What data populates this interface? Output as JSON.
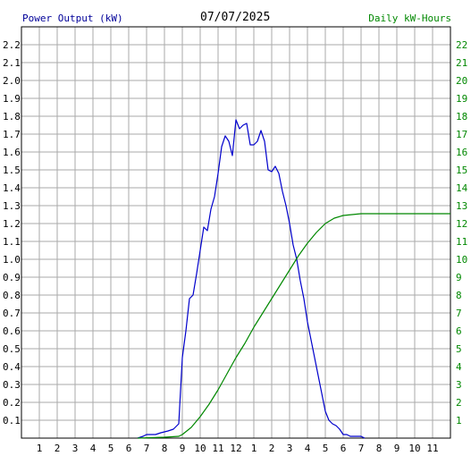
{
  "chart_data": {
    "type": "line",
    "title": "07/07/2025",
    "left_axis_label": "Power Output (kW)",
    "right_axis_label": "Daily kW-Hours",
    "x_tick_labels": [
      "1",
      "2",
      "3",
      "4",
      "5",
      "6",
      "7",
      "8",
      "9",
      "10",
      "11",
      "12",
      "1",
      "2",
      "3",
      "4",
      "5",
      "6",
      "7",
      "8",
      "9",
      "10",
      "11"
    ],
    "x_range_hours": [
      0,
      24
    ],
    "y_left_range": [
      0,
      2.3
    ],
    "y_left_ticks": [
      "0.1",
      "0.2",
      "0.3",
      "0.4",
      "0.5",
      "0.6",
      "0.7",
      "0.8",
      "0.9",
      "1.0",
      "1.1",
      "1.2",
      "1.3",
      "1.4",
      "1.5",
      "1.6",
      "1.7",
      "1.8",
      "1.9",
      "2.0",
      "2.1",
      "2.2"
    ],
    "y_right_range": [
      0,
      23
    ],
    "y_right_ticks": [
      "1",
      "2",
      "3",
      "4",
      "5",
      "6",
      "7",
      "8",
      "9",
      "10",
      "11",
      "12",
      "13",
      "14",
      "15",
      "16",
      "17",
      "18",
      "19",
      "20",
      "21",
      "22"
    ],
    "grid": true,
    "colors": {
      "power": "#0000cc",
      "energy": "#008800",
      "grid": "#aaaaaa",
      "axis": "#000000",
      "left_text": "#000099",
      "right_text": "#008800"
    },
    "series": [
      {
        "axis": "left",
        "color": "#0000cc",
        "points": [
          [
            6.5,
            0
          ],
          [
            6.8,
            0.01
          ],
          [
            7.0,
            0.02
          ],
          [
            7.5,
            0.02
          ],
          [
            7.8,
            0.03
          ],
          [
            8.2,
            0.04
          ],
          [
            8.5,
            0.05
          ],
          [
            8.8,
            0.08
          ],
          [
            9.0,
            0.45
          ],
          [
            9.2,
            0.6
          ],
          [
            9.4,
            0.78
          ],
          [
            9.6,
            0.8
          ],
          [
            9.8,
            0.92
          ],
          [
            10.0,
            1.05
          ],
          [
            10.2,
            1.18
          ],
          [
            10.4,
            1.16
          ],
          [
            10.6,
            1.28
          ],
          [
            10.8,
            1.35
          ],
          [
            11.0,
            1.48
          ],
          [
            11.2,
            1.63
          ],
          [
            11.4,
            1.69
          ],
          [
            11.6,
            1.66
          ],
          [
            11.8,
            1.58
          ],
          [
            12.0,
            1.78
          ],
          [
            12.2,
            1.73
          ],
          [
            12.4,
            1.75
          ],
          [
            12.6,
            1.76
          ],
          [
            12.8,
            1.64
          ],
          [
            13.0,
            1.64
          ],
          [
            13.2,
            1.66
          ],
          [
            13.4,
            1.72
          ],
          [
            13.6,
            1.66
          ],
          [
            13.8,
            1.5
          ],
          [
            14.0,
            1.49
          ],
          [
            14.2,
            1.52
          ],
          [
            14.4,
            1.48
          ],
          [
            14.6,
            1.38
          ],
          [
            14.8,
            1.3
          ],
          [
            15.0,
            1.2
          ],
          [
            15.2,
            1.08
          ],
          [
            15.4,
            1.0
          ],
          [
            15.6,
            0.88
          ],
          [
            15.8,
            0.78
          ],
          [
            16.0,
            0.65
          ],
          [
            16.2,
            0.55
          ],
          [
            16.4,
            0.45
          ],
          [
            16.6,
            0.35
          ],
          [
            16.8,
            0.25
          ],
          [
            17.0,
            0.15
          ],
          [
            17.2,
            0.1
          ],
          [
            17.4,
            0.08
          ],
          [
            17.6,
            0.07
          ],
          [
            17.8,
            0.05
          ],
          [
            18.0,
            0.02
          ],
          [
            18.2,
            0.02
          ],
          [
            18.4,
            0.01
          ],
          [
            19.0,
            0.01
          ],
          [
            19.2,
            0
          ]
        ]
      },
      {
        "axis": "right",
        "color": "#008800",
        "points": [
          [
            6.5,
            0
          ],
          [
            8.0,
            0.05
          ],
          [
            8.8,
            0.1
          ],
          [
            9.0,
            0.2
          ],
          [
            9.5,
            0.6
          ],
          [
            10.0,
            1.2
          ],
          [
            10.5,
            1.9
          ],
          [
            11.0,
            2.7
          ],
          [
            11.5,
            3.6
          ],
          [
            12.0,
            4.5
          ],
          [
            12.5,
            5.3
          ],
          [
            13.0,
            6.2
          ],
          [
            13.5,
            7.0
          ],
          [
            14.0,
            7.8
          ],
          [
            14.5,
            8.6
          ],
          [
            15.0,
            9.4
          ],
          [
            15.5,
            10.2
          ],
          [
            16.0,
            10.9
          ],
          [
            16.5,
            11.5
          ],
          [
            17.0,
            12.0
          ],
          [
            17.5,
            12.3
          ],
          [
            18.0,
            12.45
          ],
          [
            18.5,
            12.5
          ],
          [
            19.0,
            12.55
          ],
          [
            24.0,
            12.55
          ]
        ]
      }
    ]
  }
}
